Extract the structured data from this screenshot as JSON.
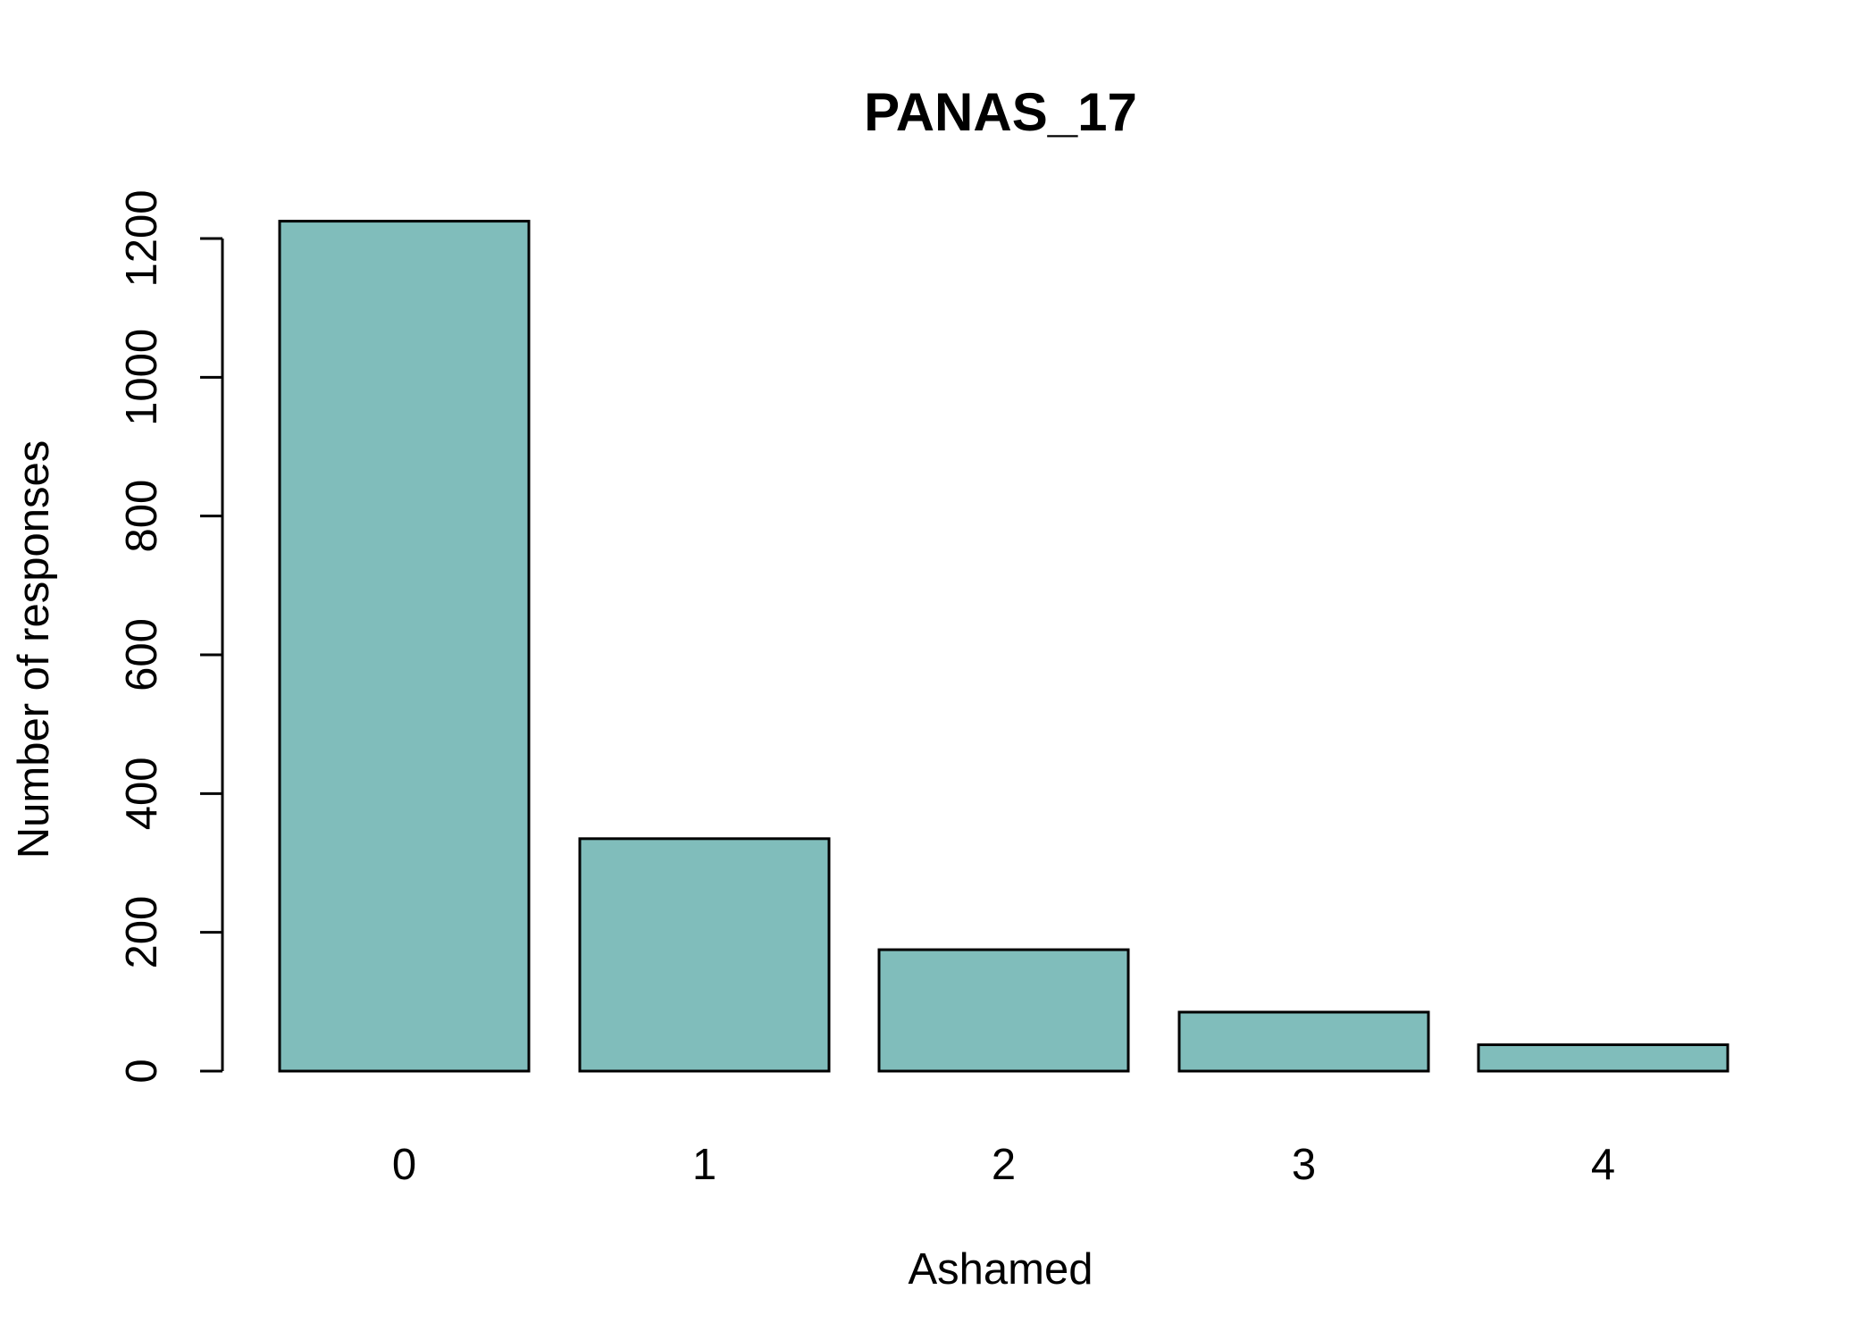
{
  "chart_data": {
    "type": "bar",
    "title": "PANAS_17",
    "xlabel": "Ashamed",
    "ylabel": "Number of responses",
    "categories": [
      "0",
      "1",
      "2",
      "3",
      "4"
    ],
    "values": [
      1225,
      335,
      175,
      85,
      38
    ],
    "ylim": [
      0,
      1200
    ],
    "yticks": [
      0,
      200,
      400,
      600,
      800,
      1000,
      1200
    ],
    "bar_color": "#80BDBB",
    "grid": false,
    "legend": "none"
  }
}
